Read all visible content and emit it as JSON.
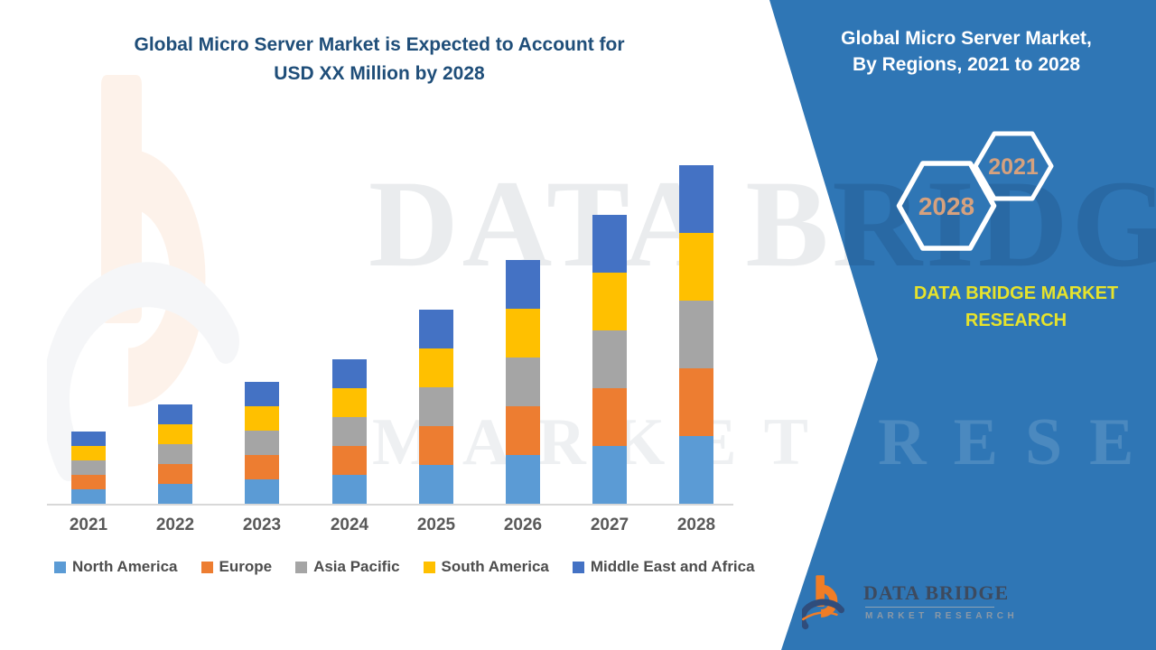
{
  "chart": {
    "title_line1": "Global Micro Server Market is Expected to Account for",
    "title_line2": "USD XX Million by 2028",
    "title_color": "#1F4E79"
  },
  "chart_data": {
    "type": "bar",
    "stacked": true,
    "categories": [
      "2021",
      "2022",
      "2023",
      "2024",
      "2025",
      "2026",
      "2027",
      "2028"
    ],
    "series": [
      {
        "name": "North America",
        "color": "#5B9BD5",
        "values": [
          16,
          22,
          27,
          32,
          43,
          54,
          64,
          75
        ]
      },
      {
        "name": "Europe",
        "color": "#ED7D31",
        "values": [
          16,
          22,
          27,
          32,
          43,
          54,
          64,
          75
        ]
      },
      {
        "name": "Asia Pacific",
        "color": "#A5A5A5",
        "values": [
          16,
          22,
          27,
          32,
          43,
          54,
          64,
          75
        ]
      },
      {
        "name": "South America",
        "color": "#FFC000",
        "values": [
          16,
          22,
          27,
          32,
          43,
          54,
          64,
          75
        ]
      },
      {
        "name": "Middle East and Africa",
        "color": "#4472C4",
        "values": [
          16,
          22,
          27,
          32,
          43,
          54,
          64,
          75
        ]
      }
    ],
    "title": "Global Micro Server Market is Expected to Account for USD XX Million by 2028",
    "xlabel": "",
    "ylabel": "",
    "ylim_note": "No y-axis shown; values are relative units estimated from bar heights (1 unit ≈ 1 px). Each year's five regional segments appear equal in size.",
    "legend_position": "bottom",
    "grid": false
  },
  "panel": {
    "background": "#2F76B5",
    "title_line1": "Global Micro Server Market,",
    "title_line2": "By Regions, 2021 to 2028",
    "hexagons": [
      {
        "label": "2028"
      },
      {
        "label": "2021"
      }
    ],
    "hex_text_color": "#D6A17E",
    "brand_line1": "DATA BRIDGE MARKET",
    "brand_line2": "RESEARCH",
    "brand_color": "#E7E32B",
    "logo_name": "DATA BRIDGE",
    "logo_subname": "MARKET RESEARCH"
  },
  "watermark": {
    "line1": "DATA BRIDGE",
    "line2": "MARKET RESEARCH"
  }
}
